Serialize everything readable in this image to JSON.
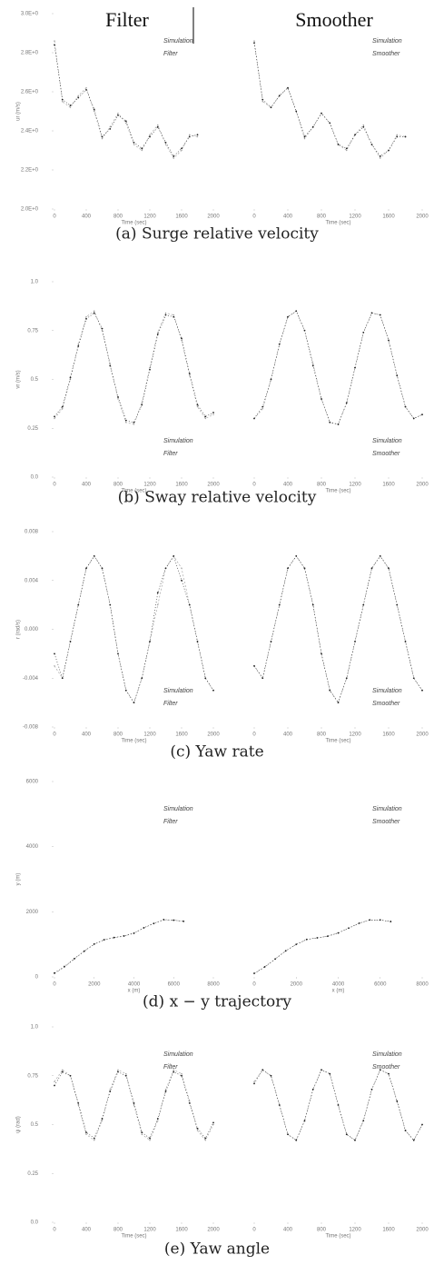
{
  "headers": [
    "Filter",
    "Smoother"
  ],
  "captions": [
    "(a) Surge relative velocity",
    "(b) Sway relative velocity",
    "(c) Yaw rate",
    "(d) x − y trajectory",
    "(e) Yaw angle"
  ],
  "chart_data": [
    {
      "type": "line",
      "xlabel": "Time (sec)",
      "ylabel": "ur (m/s)",
      "legend": "upper right",
      "x": [
        0,
        100,
        200,
        300,
        400,
        500,
        600,
        700,
        800,
        900,
        1000,
        1100,
        1200,
        1300,
        1400,
        1500,
        1600,
        1700,
        1800
      ],
      "xlim": [
        0,
        2000
      ],
      "xticks": [
        0,
        400,
        800,
        1200,
        1600,
        2000
      ],
      "ylim": [
        2.0,
        3.0
      ],
      "yticks": [
        {
          "value": 2.0,
          "label": "2.0E+0"
        },
        {
          "value": 2.2,
          "label": "2.2E+0"
        },
        {
          "value": 2.4,
          "label": "2.4E+0"
        },
        {
          "value": 2.6,
          "label": "2.6E+0"
        },
        {
          "value": 2.8,
          "label": "2.8E+0"
        },
        {
          "value": 3.0,
          "label": "3.0E+0"
        }
      ],
      "series": [
        {
          "name": "Simulation",
          "color": "#999999",
          "values": [
            2.86,
            2.55,
            2.52,
            2.58,
            2.62,
            2.5,
            2.36,
            2.42,
            2.49,
            2.44,
            2.33,
            2.3,
            2.38,
            2.43,
            2.33,
            2.26,
            2.3,
            2.38,
            2.37
          ]
        },
        {
          "name": "Filter",
          "color": "#222222",
          "values": [
            2.84,
            2.56,
            2.53,
            2.57,
            2.61,
            2.51,
            2.37,
            2.41,
            2.48,
            2.45,
            2.34,
            2.31,
            2.37,
            2.42,
            2.34,
            2.27,
            2.31,
            2.37,
            2.38
          ]
        }
      ]
    },
    {
      "type": "line",
      "xlabel": "Time (sec)",
      "legend": "upper right",
      "x": [
        0,
        100,
        200,
        300,
        400,
        500,
        600,
        700,
        800,
        900,
        1000,
        1100,
        1200,
        1300,
        1400,
        1500,
        1600,
        1700,
        1800
      ],
      "xlim": [
        0,
        2000
      ],
      "xticks": [
        0,
        400,
        800,
        1200,
        1600,
        2000
      ],
      "ylim": [
        2.0,
        3.0
      ],
      "series": [
        {
          "name": "Simulation",
          "color": "#999999",
          "values": [
            2.86,
            2.55,
            2.52,
            2.58,
            2.62,
            2.5,
            2.36,
            2.42,
            2.49,
            2.44,
            2.33,
            2.3,
            2.38,
            2.43,
            2.33,
            2.26,
            2.3,
            2.38,
            2.37
          ]
        },
        {
          "name": "Smoother",
          "color": "#222222",
          "values": [
            2.85,
            2.56,
            2.52,
            2.58,
            2.62,
            2.5,
            2.37,
            2.42,
            2.49,
            2.44,
            2.33,
            2.31,
            2.38,
            2.42,
            2.33,
            2.27,
            2.3,
            2.37,
            2.37
          ]
        }
      ]
    },
    {
      "type": "line",
      "xlabel": "Time (sec)",
      "ylabel": "vr (m/s)",
      "legend": "lower right",
      "x": [
        0,
        100,
        200,
        300,
        400,
        500,
        600,
        700,
        800,
        900,
        1000,
        1100,
        1200,
        1300,
        1400,
        1500,
        1600,
        1700,
        1800,
        1900,
        2000
      ],
      "xlim": [
        0,
        2000
      ],
      "xticks": [
        0,
        400,
        800,
        1200,
        1600,
        2000
      ],
      "ylim": [
        0,
        1
      ],
      "yticks": [
        {
          "value": 0,
          "label": "0.0"
        },
        0.25,
        0.5,
        0.75,
        {
          "value": 1,
          "label": "1.0"
        }
      ],
      "series": [
        {
          "name": "Simulation",
          "color": "#999999",
          "values": [
            0.3,
            0.35,
            0.5,
            0.68,
            0.82,
            0.85,
            0.75,
            0.58,
            0.4,
            0.28,
            0.27,
            0.38,
            0.56,
            0.74,
            0.84,
            0.83,
            0.7,
            0.52,
            0.36,
            0.3,
            0.32
          ]
        },
        {
          "name": "Filter",
          "color": "#222222",
          "values": [
            0.31,
            0.36,
            0.51,
            0.67,
            0.81,
            0.84,
            0.76,
            0.57,
            0.41,
            0.29,
            0.28,
            0.37,
            0.55,
            0.73,
            0.83,
            0.82,
            0.71,
            0.53,
            0.37,
            0.31,
            0.33
          ]
        }
      ]
    },
    {
      "type": "line",
      "xlabel": "Time (sec)",
      "legend": "lower right",
      "x": [
        0,
        100,
        200,
        300,
        400,
        500,
        600,
        700,
        800,
        900,
        1000,
        1100,
        1200,
        1300,
        1400,
        1500,
        1600,
        1700,
        1800,
        1900,
        2000
      ],
      "xlim": [
        0,
        2000
      ],
      "xticks": [
        0,
        400,
        800,
        1200,
        1600,
        2000
      ],
      "ylim": [
        0,
        1
      ],
      "series": [
        {
          "name": "Simulation",
          "color": "#999999",
          "values": [
            0.3,
            0.35,
            0.5,
            0.68,
            0.82,
            0.85,
            0.75,
            0.58,
            0.4,
            0.28,
            0.27,
            0.38,
            0.56,
            0.74,
            0.84,
            0.83,
            0.7,
            0.52,
            0.36,
            0.3,
            0.32
          ]
        },
        {
          "name": "Smoother",
          "color": "#222222",
          "values": [
            0.3,
            0.36,
            0.5,
            0.68,
            0.82,
            0.85,
            0.75,
            0.57,
            0.4,
            0.28,
            0.27,
            0.38,
            0.56,
            0.74,
            0.84,
            0.83,
            0.7,
            0.52,
            0.36,
            0.3,
            0.32
          ]
        }
      ]
    },
    {
      "type": "line",
      "xlabel": "Time (sec)",
      "ylabel": "r (rad/s)",
      "legend": "lower right",
      "x": [
        0,
        100,
        200,
        300,
        400,
        500,
        600,
        700,
        800,
        900,
        1000,
        1100,
        1200,
        1300,
        1400,
        1500,
        1600,
        1700,
        1800,
        1900,
        2000
      ],
      "xlim": [
        0,
        2000
      ],
      "xticks": [
        0,
        400,
        800,
        1200,
        1600,
        2000
      ],
      "ylim": [
        -0.008,
        0.008
      ],
      "yticks": [
        -0.008,
        -0.004,
        {
          "value": 0,
          "label": "0.000"
        },
        0.004,
        0.008
      ],
      "series": [
        {
          "name": "Simulation",
          "color": "#999999",
          "values": [
            -0.003,
            -0.004,
            -0.001,
            0.002,
            0.005,
            0.006,
            0.005,
            0.002,
            -0.002,
            -0.005,
            -0.006,
            -0.004,
            -0.001,
            0.002,
            0.005,
            0.006,
            0.005,
            0.002,
            -0.001,
            -0.004,
            -0.005
          ]
        },
        {
          "name": "Filter",
          "color": "#222222",
          "values": [
            -0.002,
            -0.004,
            -0.001,
            0.002,
            0.005,
            0.006,
            0.005,
            0.002,
            -0.002,
            -0.005,
            -0.006,
            -0.004,
            -0.001,
            0.003,
            0.005,
            0.006,
            0.004,
            0.002,
            -0.001,
            -0.004,
            -0.005
          ]
        }
      ]
    },
    {
      "type": "line",
      "xlabel": "Time (sec)",
      "legend": "lower right",
      "x": [
        0,
        100,
        200,
        300,
        400,
        500,
        600,
        700,
        800,
        900,
        1000,
        1100,
        1200,
        1300,
        1400,
        1500,
        1600,
        1700,
        1800,
        1900,
        2000
      ],
      "xlim": [
        0,
        2000
      ],
      "xticks": [
        0,
        400,
        800,
        1200,
        1600,
        2000
      ],
      "ylim": [
        -0.008,
        0.008
      ],
      "series": [
        {
          "name": "Simulation",
          "color": "#999999",
          "values": [
            -0.003,
            -0.004,
            -0.001,
            0.002,
            0.005,
            0.006,
            0.005,
            0.002,
            -0.002,
            -0.005,
            -0.006,
            -0.004,
            -0.001,
            0.002,
            0.005,
            0.006,
            0.005,
            0.002,
            -0.001,
            -0.004,
            -0.005
          ]
        },
        {
          "name": "Smoother",
          "color": "#222222",
          "values": [
            -0.003,
            -0.004,
            -0.001,
            0.002,
            0.005,
            0.006,
            0.005,
            0.002,
            -0.002,
            -0.005,
            -0.006,
            -0.004,
            -0.001,
            0.002,
            0.005,
            0.006,
            0.005,
            0.002,
            -0.001,
            -0.004,
            -0.005
          ]
        }
      ]
    },
    {
      "type": "line",
      "xlabel": "x (m)",
      "ylabel": "y (m)",
      "legend": "upper right",
      "x": [
        0,
        500,
        1000,
        1500,
        2000,
        2500,
        3000,
        3500,
        4000,
        4500,
        5000,
        5500,
        6000,
        6500
      ],
      "xlim": [
        0,
        8000
      ],
      "xticks": [
        0,
        2000,
        4000,
        6000,
        8000
      ],
      "ylim": [
        0,
        6000
      ],
      "yticks": [
        0,
        2000,
        4000,
        6000
      ],
      "series": [
        {
          "name": "Simulation",
          "color": "#999999",
          "values": [
            100,
            300,
            550,
            800,
            1000,
            1150,
            1200,
            1250,
            1350,
            1500,
            1650,
            1750,
            1750,
            1700
          ]
        },
        {
          "name": "Filter",
          "color": "#222222",
          "values": [
            120,
            320,
            560,
            790,
            1010,
            1140,
            1210,
            1260,
            1340,
            1510,
            1640,
            1760,
            1740,
            1710
          ]
        }
      ]
    },
    {
      "type": "line",
      "xlabel": "x (m)",
      "legend": "upper right",
      "x": [
        0,
        500,
        1000,
        1500,
        2000,
        2500,
        3000,
        3500,
        4000,
        4500,
        5000,
        5500,
        6000,
        6500
      ],
      "xlim": [
        0,
        8000
      ],
      "xticks": [
        0,
        2000,
        4000,
        6000,
        8000
      ],
      "ylim": [
        0,
        6000
      ],
      "series": [
        {
          "name": "Simulation",
          "color": "#999999",
          "values": [
            100,
            300,
            550,
            800,
            1000,
            1150,
            1200,
            1250,
            1350,
            1500,
            1650,
            1750,
            1750,
            1700
          ]
        },
        {
          "name": "Smoother",
          "color": "#222222",
          "values": [
            110,
            310,
            550,
            800,
            1000,
            1150,
            1200,
            1250,
            1350,
            1500,
            1650,
            1750,
            1750,
            1700
          ]
        }
      ]
    },
    {
      "type": "line",
      "xlabel": "Time (sec)",
      "ylabel": "ψ (rad)",
      "legend": "upper right",
      "x": [
        0,
        100,
        200,
        300,
        400,
        500,
        600,
        700,
        800,
        900,
        1000,
        1100,
        1200,
        1300,
        1400,
        1500,
        1600,
        1700,
        1800,
        1900,
        2000
      ],
      "xlim": [
        0,
        2000
      ],
      "xticks": [
        0,
        400,
        800,
        1200,
        1600,
        2000
      ],
      "ylim": [
        0,
        1
      ],
      "yticks": [
        {
          "value": 0,
          "label": "0.0"
        },
        0.25,
        0.5,
        0.75,
        {
          "value": 1,
          "label": "1.0"
        }
      ],
      "series": [
        {
          "name": "Simulation",
          "color": "#999999",
          "values": [
            0.72,
            0.78,
            0.75,
            0.6,
            0.45,
            0.42,
            0.52,
            0.68,
            0.78,
            0.76,
            0.6,
            0.45,
            0.42,
            0.52,
            0.68,
            0.78,
            0.76,
            0.62,
            0.47,
            0.42,
            0.5
          ]
        },
        {
          "name": "Filter",
          "color": "#222222",
          "values": [
            0.7,
            0.77,
            0.75,
            0.61,
            0.46,
            0.43,
            0.53,
            0.67,
            0.77,
            0.75,
            0.61,
            0.46,
            0.43,
            0.53,
            0.67,
            0.77,
            0.75,
            0.61,
            0.48,
            0.43,
            0.51
          ]
        }
      ]
    },
    {
      "type": "line",
      "xlabel": "Time (sec)",
      "legend": "upper right",
      "x": [
        0,
        100,
        200,
        300,
        400,
        500,
        600,
        700,
        800,
        900,
        1000,
        1100,
        1200,
        1300,
        1400,
        1500,
        1600,
        1700,
        1800,
        1900,
        2000
      ],
      "xlim": [
        0,
        2000
      ],
      "xticks": [
        0,
        400,
        800,
        1200,
        1600,
        2000
      ],
      "ylim": [
        0,
        1
      ],
      "series": [
        {
          "name": "Simulation",
          "color": "#999999",
          "values": [
            0.72,
            0.78,
            0.75,
            0.6,
            0.45,
            0.42,
            0.52,
            0.68,
            0.78,
            0.76,
            0.6,
            0.45,
            0.42,
            0.52,
            0.68,
            0.78,
            0.76,
            0.62,
            0.47,
            0.42,
            0.5
          ]
        },
        {
          "name": "Smoother",
          "color": "#222222",
          "values": [
            0.71,
            0.78,
            0.75,
            0.6,
            0.45,
            0.42,
            0.52,
            0.68,
            0.78,
            0.76,
            0.6,
            0.45,
            0.42,
            0.52,
            0.68,
            0.78,
            0.76,
            0.62,
            0.47,
            0.42,
            0.5
          ]
        }
      ]
    }
  ]
}
